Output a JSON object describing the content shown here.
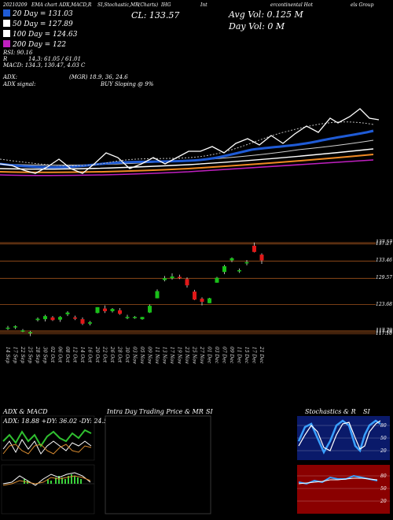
{
  "header": {
    "date_left": "20210209",
    "top_title": "EMA chart",
    "top_indicators": "ADX,MACD,R",
    "top_stoch": "SI,Stochastic,MR",
    "top_symbol": "SI",
    "top_mid": "(Charts)",
    "top_ticker": "IHG",
    "top_name_a": "Int",
    "top_name_b": "ercontinental Hot",
    "top_name_c": "els Group",
    "close_label": "CL: 133.57",
    "avg_vol": "Avg Vol: 0.125 M",
    "day_vol": "Day Vol: 0   M"
  },
  "legend": [
    {
      "label": "20 Day = 131.03",
      "color": "#1f5bd6"
    },
    {
      "label": "50 Day = 127.89",
      "color": "#ffffff"
    },
    {
      "label": "100 Day = 124.63",
      "color": "#ffffff"
    },
    {
      "label": "200 Day = 122",
      "color": "#c020c0"
    }
  ],
  "stats": {
    "rsi": "RSI: 90.16",
    "r": "R",
    "r_val": "14,3: 61.05 / 61.01",
    "macd": "MACD: 134.3,  130.47,  4.03 C",
    "adx_label": "ADX:",
    "adx_val": "(MGR) 18.9, 36, 24.6",
    "adx_signal_label": "ADX  signal:",
    "adx_signal_val": "BUY Sloping @ 9%"
  },
  "price_levels": [
    "137.57",
    "137.27",
    "133.46",
    "129.57",
    "123.68",
    "117.79",
    "117.49",
    "117.10"
  ],
  "x_dates": [
    "14 Sep",
    "17 Sep",
    "22 Sep",
    "25 Sep",
    "28 Sep",
    "30 Sep",
    "02 Oct",
    "06 Oct",
    "08 Oct",
    "12 Oct",
    "14 Oct",
    "16 Oct",
    "20 Oct",
    "22 Oct",
    "26 Oct",
    "28 Oct",
    "30 Oct",
    "03 Nov",
    "05 Nov",
    "09 Nov",
    "11 Nov",
    "13 Nov",
    "17 Nov",
    "19 Nov",
    "23 Nov",
    "25 Nov",
    "27 Nov",
    "01 Dec",
    "03 Dec",
    "07 Dec",
    "09 Dec",
    "11 Dec",
    "15 Dec",
    "17 Dec",
    "21 Dec"
  ],
  "panels": {
    "adx_title": "ADX  & MACD",
    "adx_values": "ADX: 18.88  +DY: 36.02  -DY: 24.58",
    "intra_title": "Intra  Day Trading Price  & MR",
    "intra_si": "SI",
    "stoch_title": "Stochastics & R",
    "stoch_si": "SI",
    "stoch_levels": [
      "80",
      "50",
      "20"
    ],
    "rsi_levels": [
      "80",
      "50",
      "20"
    ]
  },
  "chart_data": {
    "type": "candlestick",
    "categories": [
      "14 Sep",
      "17 Sep",
      "22 Sep",
      "25 Sep",
      "28 Sep",
      "30 Sep",
      "02 Oct",
      "06 Oct",
      "08 Oct",
      "12 Oct",
      "14 Oct",
      "16 Oct",
      "20 Oct",
      "22 Oct",
      "26 Oct",
      "28 Oct",
      "30 Oct",
      "03 Nov",
      "05 Nov",
      "09 Nov",
      "11 Nov",
      "13 Nov",
      "17 Nov",
      "19 Nov",
      "23 Nov",
      "25 Nov",
      "27 Nov",
      "01 Dec",
      "03 Dec",
      "07 Dec",
      "09 Dec",
      "11 Dec",
      "15 Dec",
      "17 Dec",
      "21 Dec"
    ],
    "candles": [
      {
        "o": 118.4,
        "h": 118.9,
        "l": 118.0,
        "c": 118.5
      },
      {
        "o": 118.6,
        "h": 119.0,
        "l": 118.2,
        "c": 118.8
      },
      {
        "o": 117.8,
        "h": 118.2,
        "l": 117.5,
        "c": 117.9
      },
      {
        "o": 117.4,
        "h": 117.8,
        "l": 116.6,
        "c": 117.5
      },
      {
        "o": 120.2,
        "h": 120.8,
        "l": 119.9,
        "c": 120.5
      },
      {
        "o": 120.4,
        "h": 121.4,
        "l": 119.9,
        "c": 121.1
      },
      {
        "o": 120.8,
        "h": 121.1,
        "l": 120.0,
        "c": 120.2
      },
      {
        "o": 120.3,
        "h": 121.1,
        "l": 119.8,
        "c": 120.9
      },
      {
        "o": 121.5,
        "h": 122.2,
        "l": 121.1,
        "c": 121.9
      },
      {
        "o": 120.8,
        "h": 121.2,
        "l": 120.2,
        "c": 120.5
      },
      {
        "o": 120.4,
        "h": 120.8,
        "l": 119.1,
        "c": 119.4
      },
      {
        "o": 119.4,
        "h": 120.0,
        "l": 119.0,
        "c": 119.7
      },
      {
        "o": 121.8,
        "h": 123.1,
        "l": 121.7,
        "c": 123.1
      },
      {
        "o": 122.8,
        "h": 123.5,
        "l": 121.8,
        "c": 122.2
      },
      {
        "o": 122.2,
        "h": 122.9,
        "l": 121.9,
        "c": 122.7
      },
      {
        "o": 122.4,
        "h": 122.9,
        "l": 121.4,
        "c": 121.6
      },
      {
        "o": 120.9,
        "h": 121.4,
        "l": 120.4,
        "c": 120.9
      },
      {
        "o": 120.7,
        "h": 121.1,
        "l": 120.5,
        "c": 120.9
      },
      {
        "o": 120.4,
        "h": 120.9,
        "l": 120.3,
        "c": 120.9
      },
      {
        "o": 121.9,
        "h": 123.7,
        "l": 121.8,
        "c": 123.4
      },
      {
        "o": 125.1,
        "h": 127.1,
        "l": 125.1,
        "c": 126.7
      },
      {
        "o": 129.2,
        "h": 130.1,
        "l": 128.9,
        "c": 129.6
      },
      {
        "o": 129.6,
        "h": 130.7,
        "l": 129.3,
        "c": 130.0
      },
      {
        "o": 129.9,
        "h": 130.4,
        "l": 129.4,
        "c": 129.7
      },
      {
        "o": 129.4,
        "h": 129.8,
        "l": 127.5,
        "c": 128.0
      },
      {
        "o": 126.6,
        "h": 127.0,
        "l": 124.7,
        "c": 124.8
      },
      {
        "o": 125.0,
        "h": 125.3,
        "l": 123.5,
        "c": 124.3
      },
      {
        "o": 124.0,
        "h": 125.2,
        "l": 124.0,
        "c": 125.1
      },
      {
        "o": 128.6,
        "h": 129.9,
        "l": 128.6,
        "c": 129.7
      },
      {
        "o": 131.0,
        "h": 132.6,
        "l": 130.5,
        "c": 132.3
      },
      {
        "o": 133.6,
        "h": 134.3,
        "l": 133.2,
        "c": 134.1
      },
      {
        "o": 131.2,
        "h": 131.8,
        "l": 130.8,
        "c": 131.4
      },
      {
        "o": 133.1,
        "h": 133.7,
        "l": 132.5,
        "c": 133.2
      },
      {
        "o": 136.9,
        "h": 137.6,
        "l": 135.4,
        "c": 135.5
      },
      {
        "o": 134.9,
        "h": 135.2,
        "l": 132.8,
        "c": 133.6
      }
    ],
    "levels": [
      137.57,
      137.27,
      133.46,
      129.57,
      123.68,
      117.79,
      117.49,
      117.1
    ],
    "ylim": [
      116.0,
      139.0
    ]
  }
}
